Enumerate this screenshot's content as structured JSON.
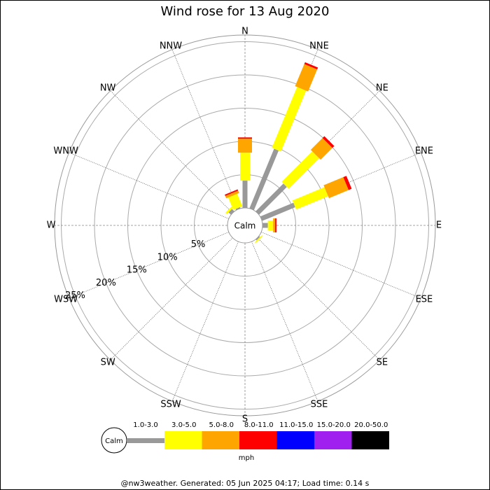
{
  "chart_data": {
    "type": "windrose",
    "title": "Wind rose for 13 Aug 2020",
    "calm_label": "Calm",
    "unit": "mph",
    "footer": "@nw3weather. Generated: 05 Jun 2025 04:17; Load time: 0.14 s",
    "categories": [
      "N",
      "NNE",
      "NE",
      "ENE",
      "E",
      "ESE",
      "SE",
      "SSE",
      "S",
      "SSW",
      "SW",
      "WSW",
      "W",
      "WNW",
      "NW",
      "NNW"
    ],
    "rlim": [
      0,
      26
    ],
    "rticks": [
      {
        "value": 5,
        "label": "5%"
      },
      {
        "value": 10,
        "label": "10%"
      },
      {
        "value": 15,
        "label": "15%"
      },
      {
        "value": 20,
        "label": "20%"
      },
      {
        "value": 25,
        "label": "25%"
      }
    ],
    "series": [
      {
        "name": "1.0-3.0",
        "color": "#999999",
        "values": [
          4.1,
          9.7,
          5.9,
          5.4,
          0.8,
          0,
          0.2,
          0,
          0,
          0,
          0,
          0,
          0,
          0,
          0.5,
          0.2
        ]
      },
      {
        "name": "3.0-5.0",
        "color": "#ffff00",
        "values": [
          4.2,
          9.9,
          6.5,
          5.2,
          0.8,
          0,
          0.2,
          0,
          0,
          0,
          0,
          0,
          0,
          0,
          0.3,
          2.0
        ]
      },
      {
        "name": "5.0-8.0",
        "color": "#ffa500",
        "values": [
          2.1,
          3.6,
          2.5,
          3.2,
          0.3,
          0,
          0,
          0,
          0,
          0,
          0,
          0,
          0,
          0,
          0,
          0.4
        ]
      },
      {
        "name": "8.0-11.0",
        "color": "#ff0000",
        "values": [
          0.2,
          0.3,
          0.4,
          0.5,
          0.2,
          0,
          0,
          0,
          0,
          0,
          0,
          0,
          0,
          0,
          0,
          0.2
        ]
      },
      {
        "name": "11.0-15.0",
        "color": "#0000ff",
        "values": [
          0,
          0,
          0,
          0,
          0,
          0,
          0,
          0,
          0,
          0,
          0,
          0,
          0,
          0,
          0,
          0
        ]
      },
      {
        "name": "15.0-20.0",
        "color": "#a020f0",
        "values": [
          0,
          0,
          0,
          0,
          0,
          0,
          0,
          0,
          0,
          0,
          0,
          0,
          0,
          0,
          0,
          0
        ]
      },
      {
        "name": "20.0-50.0",
        "color": "#000000",
        "values": [
          0,
          0,
          0,
          0,
          0,
          0,
          0,
          0,
          0,
          0,
          0,
          0,
          0,
          0,
          0,
          0
        ]
      }
    ]
  }
}
